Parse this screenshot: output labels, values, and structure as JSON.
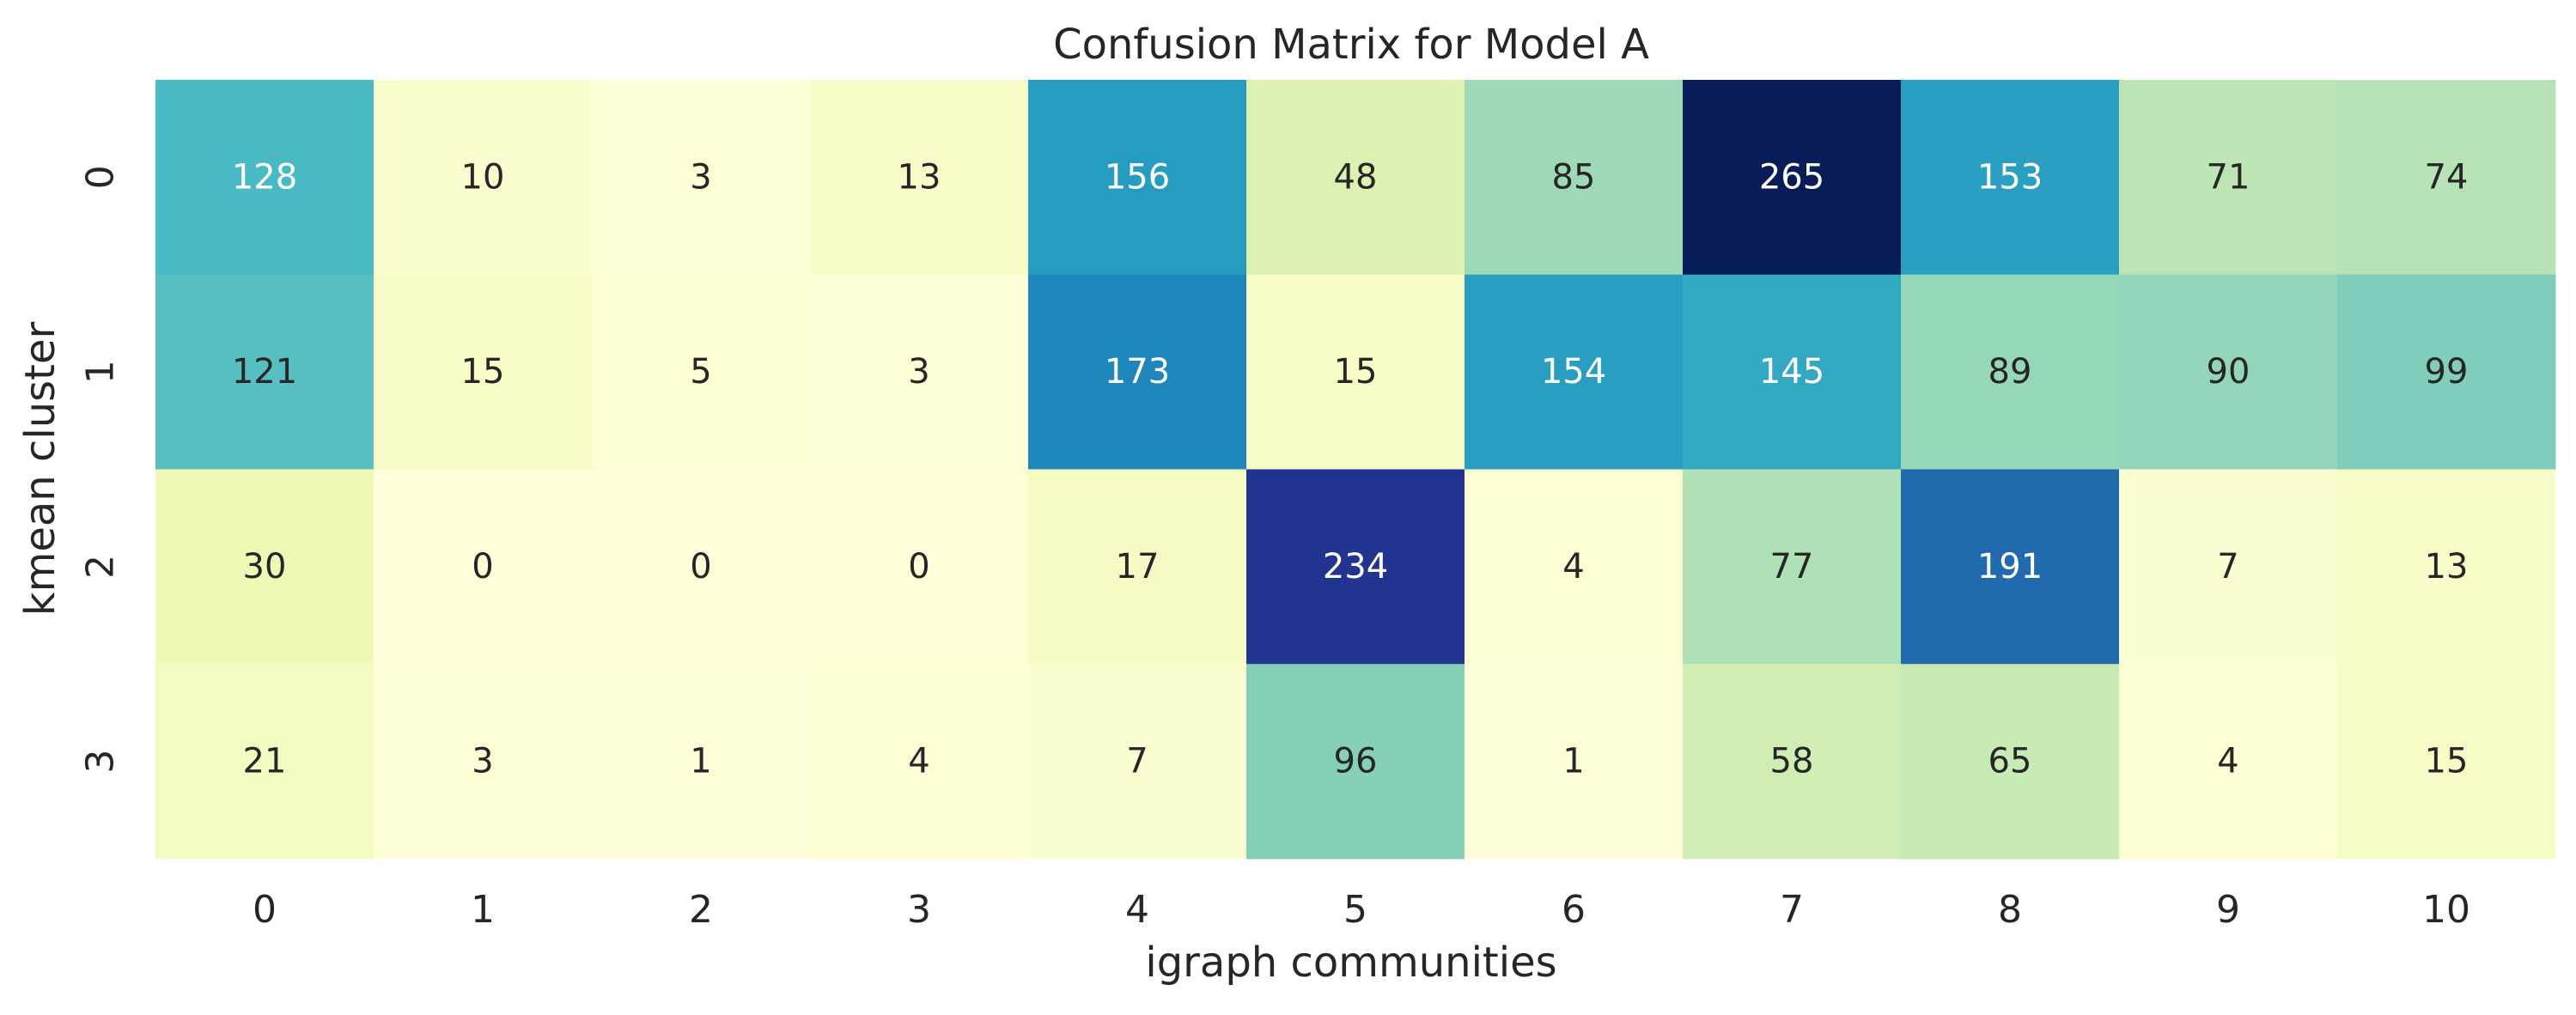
{
  "chart_data": {
    "type": "heatmap",
    "title": "Confusion Matrix for Model A",
    "xlabel": "igraph communities",
    "ylabel": "kmean cluster",
    "x_categories": [
      "0",
      "1",
      "2",
      "3",
      "4",
      "5",
      "6",
      "7",
      "8",
      "9",
      "10"
    ],
    "y_categories": [
      "0",
      "1",
      "2",
      "3"
    ],
    "values": [
      [
        128,
        10,
        3,
        13,
        156,
        48,
        85,
        265,
        153,
        71,
        74
      ],
      [
        121,
        15,
        5,
        3,
        173,
        15,
        154,
        145,
        89,
        90,
        99
      ],
      [
        30,
        0,
        0,
        0,
        17,
        234,
        4,
        77,
        191,
        7,
        13
      ],
      [
        21,
        3,
        1,
        4,
        7,
        96,
        1,
        58,
        65,
        4,
        15
      ]
    ],
    "value_range": [
      0,
      265
    ],
    "colormap": "YlGnBu",
    "colorbar": false,
    "annotations": true,
    "annotation_colors": {
      "light_cells": "#262626",
      "dark_cells": "#ffffff"
    }
  }
}
